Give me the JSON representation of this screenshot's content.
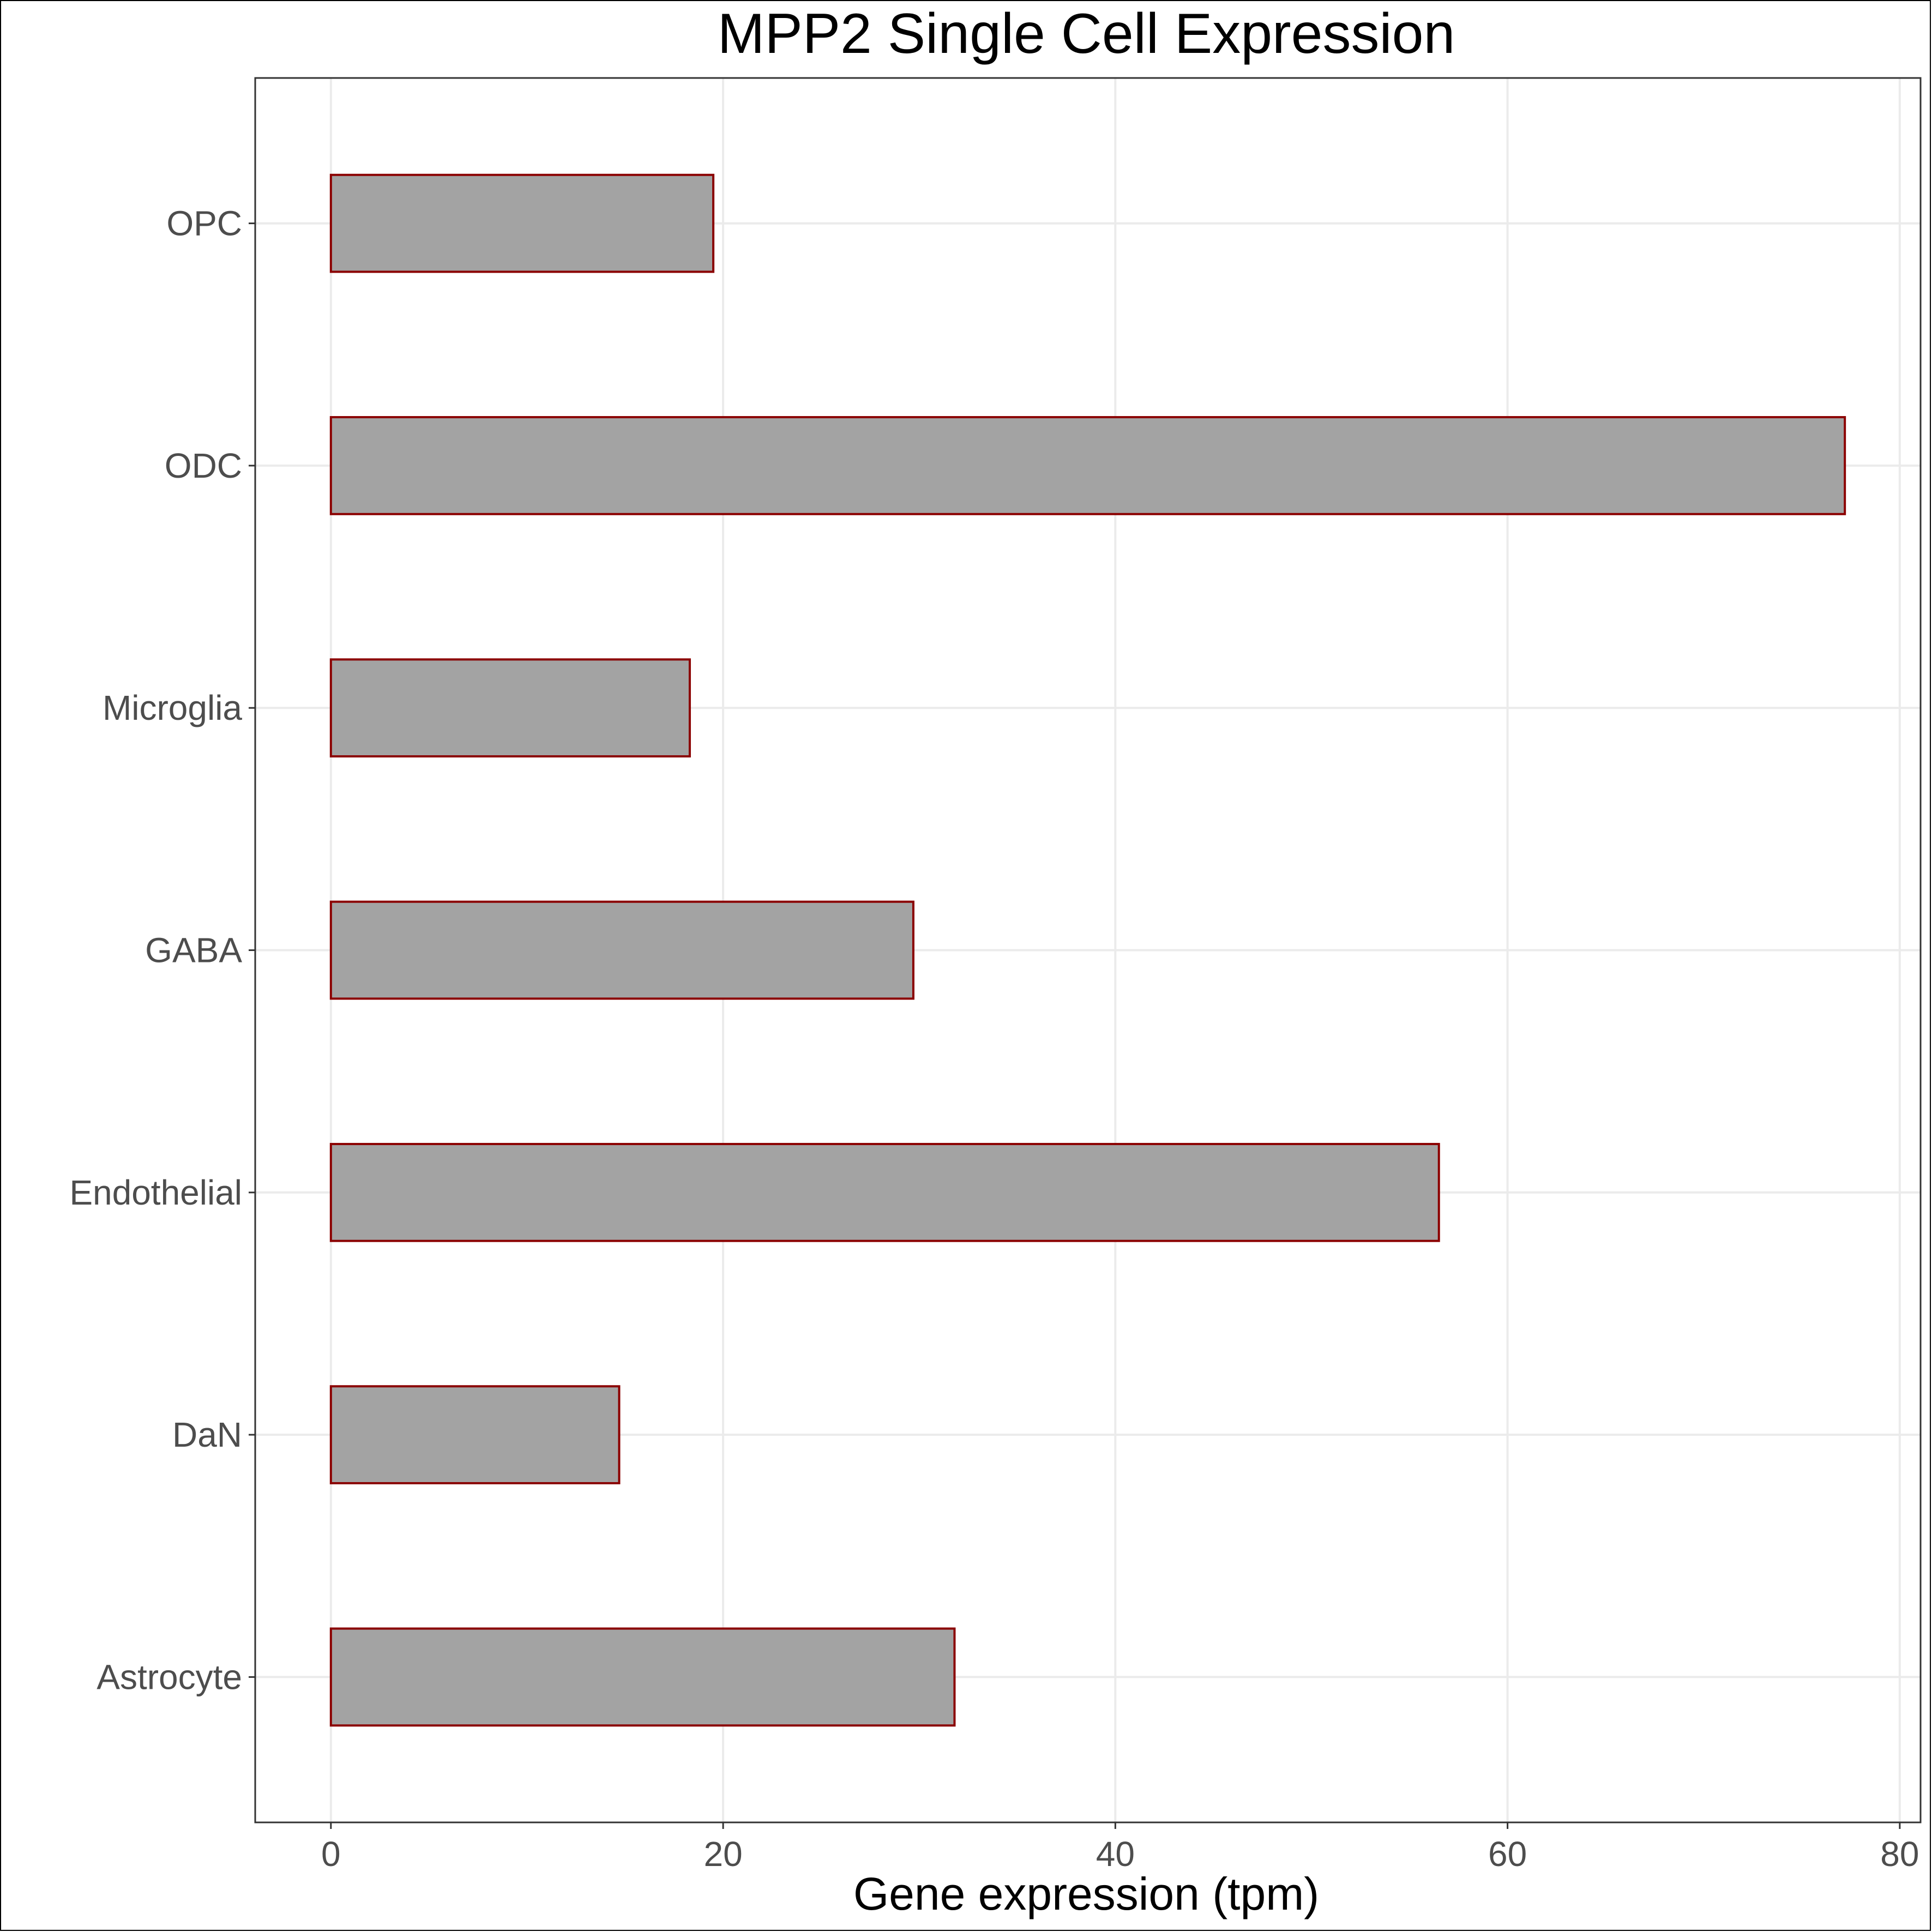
{
  "chart_data": {
    "type": "bar",
    "orientation": "horizontal",
    "title": "MPP2 Single Cell Expression",
    "xlabel": "Gene expression (tpm)",
    "ylabel": "",
    "categories": [
      "Astrocyte",
      "DaN",
      "Endothelial",
      "GABA",
      "Microglia",
      "ODC",
      "OPC"
    ],
    "values": [
      31.8,
      14.7,
      56.5,
      29.7,
      18.3,
      77.2,
      19.5
    ],
    "xlim": [
      -3.86,
      81.06
    ],
    "xticks": [
      0,
      20,
      40,
      60,
      80
    ],
    "grid": true,
    "legend": "none",
    "colors": {
      "bar_fill": "#a3a3a3",
      "bar_outline": "#8b0000",
      "grid": "#ebebeb",
      "panel_border": "#333333",
      "tick_text": "#4d4d4d"
    }
  }
}
